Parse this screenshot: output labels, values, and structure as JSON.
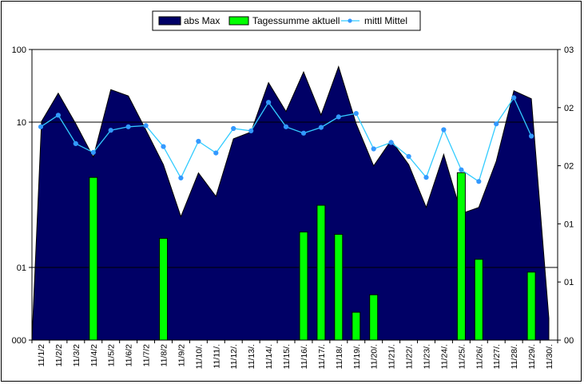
{
  "chart_data": {
    "type": "area",
    "categories": [
      "11/1/2",
      "11/2/2",
      "11/3/2",
      "11/4/2",
      "11/5/2",
      "11/6/2",
      "11/7/2",
      "11/8/2",
      "11/9/2",
      "11/10/.",
      "11/11/.",
      "11/12/.",
      "11/13/.",
      "11/14/.",
      "11/15/.",
      "11/16/.",
      "11/17/.",
      "11/18/.",
      "11/19/.",
      "11/20/.",
      "11/21/.",
      "11/22/.",
      "11/23/.",
      "11/24/.",
      "11/25/.",
      "11/26/.",
      "11/27/.",
      "11/28/.",
      "11/29/.",
      "11/30/."
    ],
    "y_ticks": [
      "000",
      "01",
      "10",
      "100"
    ],
    "y2_ticks": [
      "00",
      "01",
      "01",
      "02",
      "02",
      "03"
    ],
    "legend": {
      "placement": "top",
      "entries": [
        "abs Max",
        "Tagessumme aktuell",
        "mittl Mittel"
      ]
    },
    "series": [
      {
        "name": "abs Max",
        "type": "area",
        "axis": "left",
        "scale": "log",
        "color": "#000066",
        "values": [
          10.2,
          25,
          9.5,
          3.3,
          28,
          23,
          7.8,
          2.6,
          0.5,
          2,
          0.95,
          5.9,
          7.3,
          35,
          14,
          49,
          12.5,
          58,
          9.5,
          2.5,
          5.6,
          2.6,
          0.67,
          3.6,
          0.55,
          0.67,
          2.9,
          27,
          21,
          0.02
        ]
      },
      {
        "name": "Tagessumme aktuell",
        "type": "bar",
        "axis": "right",
        "color": "#00ff00",
        "values": [
          null,
          null,
          null,
          0.28,
          null,
          null,
          null,
          0.175,
          null,
          null,
          null,
          null,
          null,
          null,
          null,
          0.186,
          0.232,
          0.182,
          0.048,
          0.078,
          null,
          null,
          null,
          null,
          0.288,
          0.139,
          null,
          null,
          0.117,
          null
        ]
      },
      {
        "name": "mittl Mittel",
        "type": "line",
        "axis": "right",
        "color": "#33ccff",
        "values": [
          0.367,
          0.387,
          0.338,
          0.323,
          0.361,
          0.367,
          0.369,
          0.333,
          0.279,
          0.342,
          0.322,
          0.364,
          0.36,
          0.409,
          0.367,
          0.356,
          0.366,
          0.384,
          0.39,
          0.329,
          0.34,
          0.316,
          0.28,
          0.362,
          0.293,
          0.273,
          0.372,
          0.417,
          0.351,
          null
        ]
      }
    ],
    "ylim": [
      0.01,
      100
    ],
    "y2lim": [
      0,
      0.5
    ],
    "grid": "horizontal major"
  }
}
